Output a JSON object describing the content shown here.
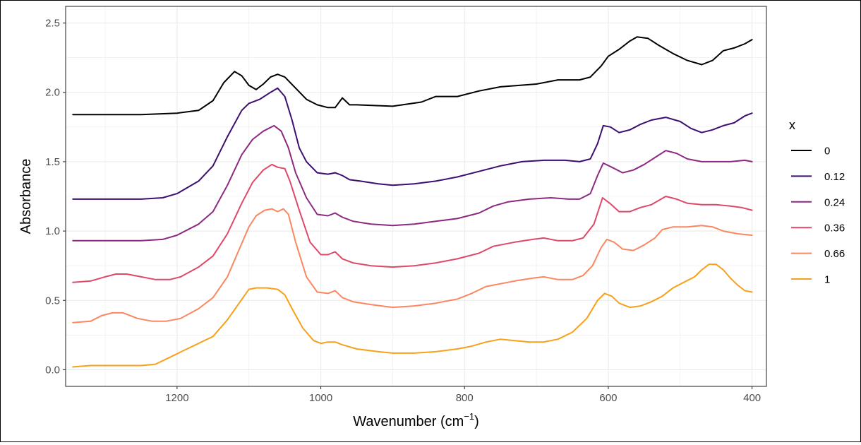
{
  "chart_data": {
    "type": "line",
    "xlabel_main": "Wavenumber (cm",
    "xlabel_sup": "−1",
    "xlabel_close": ")",
    "ylabel": "Absorbance",
    "xlim": [
      1355,
      380
    ],
    "ylim": [
      -0.12,
      2.62
    ],
    "x_reversed": true,
    "x_ticks": [
      1200,
      1000,
      800,
      600,
      400
    ],
    "y_ticks": [
      "0.0",
      "0.5",
      "1.0",
      "1.5",
      "2.0",
      "2.5"
    ],
    "grid": true,
    "legend_title": "x",
    "legend_position": "right",
    "series": [
      {
        "name": "0",
        "color": "#000004",
        "points": [
          [
            1345,
            1.84
          ],
          [
            1300,
            1.84
          ],
          [
            1250,
            1.84
          ],
          [
            1200,
            1.85
          ],
          [
            1170,
            1.87
          ],
          [
            1150,
            1.94
          ],
          [
            1135,
            2.07
          ],
          [
            1120,
            2.15
          ],
          [
            1110,
            2.12
          ],
          [
            1100,
            2.05
          ],
          [
            1090,
            2.02
          ],
          [
            1080,
            2.06
          ],
          [
            1070,
            2.11
          ],
          [
            1060,
            2.13
          ],
          [
            1050,
            2.11
          ],
          [
            1035,
            2.03
          ],
          [
            1020,
            1.95
          ],
          [
            1005,
            1.91
          ],
          [
            990,
            1.89
          ],
          [
            980,
            1.89
          ],
          [
            970,
            1.96
          ],
          [
            960,
            1.91
          ],
          [
            950,
            1.91
          ],
          [
            900,
            1.9
          ],
          [
            860,
            1.93
          ],
          [
            840,
            1.97
          ],
          [
            810,
            1.97
          ],
          [
            780,
            2.01
          ],
          [
            750,
            2.04
          ],
          [
            700,
            2.06
          ],
          [
            670,
            2.09
          ],
          [
            640,
            2.09
          ],
          [
            625,
            2.11
          ],
          [
            610,
            2.19
          ],
          [
            600,
            2.26
          ],
          [
            585,
            2.31
          ],
          [
            570,
            2.37
          ],
          [
            560,
            2.4
          ],
          [
            545,
            2.39
          ],
          [
            530,
            2.34
          ],
          [
            510,
            2.28
          ],
          [
            490,
            2.23
          ],
          [
            470,
            2.2
          ],
          [
            455,
            2.23
          ],
          [
            440,
            2.3
          ],
          [
            425,
            2.32
          ],
          [
            410,
            2.35
          ],
          [
            400,
            2.38
          ]
        ]
      },
      {
        "name": "0.12",
        "color": "#3b0f70",
        "points": [
          [
            1345,
            1.23
          ],
          [
            1300,
            1.23
          ],
          [
            1250,
            1.23
          ],
          [
            1220,
            1.24
          ],
          [
            1200,
            1.27
          ],
          [
            1170,
            1.36
          ],
          [
            1150,
            1.47
          ],
          [
            1130,
            1.68
          ],
          [
            1110,
            1.87
          ],
          [
            1100,
            1.92
          ],
          [
            1085,
            1.95
          ],
          [
            1070,
            2.0
          ],
          [
            1060,
            2.03
          ],
          [
            1050,
            1.97
          ],
          [
            1040,
            1.8
          ],
          [
            1030,
            1.6
          ],
          [
            1020,
            1.5
          ],
          [
            1005,
            1.42
          ],
          [
            990,
            1.41
          ],
          [
            980,
            1.42
          ],
          [
            970,
            1.4
          ],
          [
            960,
            1.37
          ],
          [
            945,
            1.36
          ],
          [
            920,
            1.34
          ],
          [
            900,
            1.33
          ],
          [
            870,
            1.34
          ],
          [
            840,
            1.36
          ],
          [
            810,
            1.39
          ],
          [
            780,
            1.43
          ],
          [
            750,
            1.47
          ],
          [
            720,
            1.5
          ],
          [
            690,
            1.51
          ],
          [
            660,
            1.51
          ],
          [
            640,
            1.5
          ],
          [
            625,
            1.52
          ],
          [
            615,
            1.63
          ],
          [
            607,
            1.76
          ],
          [
            597,
            1.75
          ],
          [
            585,
            1.71
          ],
          [
            570,
            1.73
          ],
          [
            555,
            1.77
          ],
          [
            540,
            1.8
          ],
          [
            520,
            1.82
          ],
          [
            500,
            1.79
          ],
          [
            485,
            1.74
          ],
          [
            470,
            1.71
          ],
          [
            455,
            1.73
          ],
          [
            440,
            1.76
          ],
          [
            425,
            1.78
          ],
          [
            410,
            1.83
          ],
          [
            400,
            1.85
          ]
        ]
      },
      {
        "name": "0.24",
        "color": "#8c2981",
        "points": [
          [
            1345,
            0.93
          ],
          [
            1300,
            0.93
          ],
          [
            1250,
            0.93
          ],
          [
            1220,
            0.94
          ],
          [
            1200,
            0.97
          ],
          [
            1170,
            1.05
          ],
          [
            1150,
            1.14
          ],
          [
            1130,
            1.33
          ],
          [
            1110,
            1.55
          ],
          [
            1095,
            1.66
          ],
          [
            1080,
            1.72
          ],
          [
            1065,
            1.76
          ],
          [
            1055,
            1.72
          ],
          [
            1045,
            1.6
          ],
          [
            1035,
            1.42
          ],
          [
            1020,
            1.24
          ],
          [
            1005,
            1.12
          ],
          [
            990,
            1.11
          ],
          [
            980,
            1.13
          ],
          [
            970,
            1.1
          ],
          [
            955,
            1.07
          ],
          [
            930,
            1.05
          ],
          [
            900,
            1.04
          ],
          [
            870,
            1.05
          ],
          [
            840,
            1.07
          ],
          [
            810,
            1.09
          ],
          [
            780,
            1.13
          ],
          [
            760,
            1.18
          ],
          [
            740,
            1.21
          ],
          [
            710,
            1.23
          ],
          [
            680,
            1.24
          ],
          [
            655,
            1.23
          ],
          [
            640,
            1.23
          ],
          [
            625,
            1.27
          ],
          [
            615,
            1.4
          ],
          [
            607,
            1.49
          ],
          [
            595,
            1.46
          ],
          [
            580,
            1.42
          ],
          [
            565,
            1.44
          ],
          [
            550,
            1.48
          ],
          [
            535,
            1.53
          ],
          [
            520,
            1.58
          ],
          [
            505,
            1.56
          ],
          [
            490,
            1.52
          ],
          [
            470,
            1.5
          ],
          [
            450,
            1.5
          ],
          [
            430,
            1.5
          ],
          [
            410,
            1.51
          ],
          [
            400,
            1.5
          ]
        ]
      },
      {
        "name": "0.36",
        "color": "#de4968",
        "points": [
          [
            1345,
            0.63
          ],
          [
            1320,
            0.64
          ],
          [
            1300,
            0.67
          ],
          [
            1285,
            0.69
          ],
          [
            1270,
            0.69
          ],
          [
            1250,
            0.67
          ],
          [
            1230,
            0.65
          ],
          [
            1210,
            0.65
          ],
          [
            1195,
            0.67
          ],
          [
            1170,
            0.74
          ],
          [
            1150,
            0.82
          ],
          [
            1130,
            0.98
          ],
          [
            1110,
            1.2
          ],
          [
            1095,
            1.35
          ],
          [
            1080,
            1.44
          ],
          [
            1068,
            1.48
          ],
          [
            1060,
            1.46
          ],
          [
            1050,
            1.45
          ],
          [
            1043,
            1.36
          ],
          [
            1030,
            1.15
          ],
          [
            1015,
            0.92
          ],
          [
            1000,
            0.83
          ],
          [
            990,
            0.83
          ],
          [
            980,
            0.85
          ],
          [
            970,
            0.8
          ],
          [
            955,
            0.77
          ],
          [
            930,
            0.75
          ],
          [
            900,
            0.74
          ],
          [
            870,
            0.75
          ],
          [
            840,
            0.77
          ],
          [
            810,
            0.8
          ],
          [
            780,
            0.84
          ],
          [
            760,
            0.89
          ],
          [
            730,
            0.92
          ],
          [
            705,
            0.94
          ],
          [
            690,
            0.95
          ],
          [
            670,
            0.93
          ],
          [
            650,
            0.93
          ],
          [
            635,
            0.95
          ],
          [
            620,
            1.05
          ],
          [
            608,
            1.24
          ],
          [
            598,
            1.2
          ],
          [
            585,
            1.14
          ],
          [
            570,
            1.14
          ],
          [
            555,
            1.17
          ],
          [
            540,
            1.19
          ],
          [
            520,
            1.25
          ],
          [
            505,
            1.23
          ],
          [
            490,
            1.2
          ],
          [
            470,
            1.19
          ],
          [
            450,
            1.19
          ],
          [
            430,
            1.18
          ],
          [
            415,
            1.17
          ],
          [
            400,
            1.15
          ]
        ]
      },
      {
        "name": "0.66",
        "color": "#fb8761",
        "points": [
          [
            1345,
            0.34
          ],
          [
            1320,
            0.35
          ],
          [
            1305,
            0.39
          ],
          [
            1290,
            0.41
          ],
          [
            1275,
            0.41
          ],
          [
            1255,
            0.37
          ],
          [
            1235,
            0.35
          ],
          [
            1215,
            0.35
          ],
          [
            1195,
            0.37
          ],
          [
            1170,
            0.44
          ],
          [
            1150,
            0.52
          ],
          [
            1130,
            0.67
          ],
          [
            1115,
            0.85
          ],
          [
            1100,
            1.03
          ],
          [
            1090,
            1.11
          ],
          [
            1078,
            1.15
          ],
          [
            1068,
            1.16
          ],
          [
            1060,
            1.14
          ],
          [
            1052,
            1.16
          ],
          [
            1045,
            1.12
          ],
          [
            1035,
            0.92
          ],
          [
            1020,
            0.67
          ],
          [
            1005,
            0.56
          ],
          [
            990,
            0.55
          ],
          [
            980,
            0.57
          ],
          [
            970,
            0.52
          ],
          [
            955,
            0.49
          ],
          [
            930,
            0.47
          ],
          [
            900,
            0.45
          ],
          [
            870,
            0.46
          ],
          [
            840,
            0.48
          ],
          [
            810,
            0.51
          ],
          [
            790,
            0.55
          ],
          [
            770,
            0.6
          ],
          [
            750,
            0.62
          ],
          [
            730,
            0.64
          ],
          [
            705,
            0.66
          ],
          [
            690,
            0.67
          ],
          [
            670,
            0.65
          ],
          [
            650,
            0.65
          ],
          [
            635,
            0.68
          ],
          [
            622,
            0.75
          ],
          [
            610,
            0.88
          ],
          [
            602,
            0.94
          ],
          [
            592,
            0.92
          ],
          [
            580,
            0.87
          ],
          [
            565,
            0.86
          ],
          [
            550,
            0.9
          ],
          [
            535,
            0.95
          ],
          [
            525,
            1.01
          ],
          [
            510,
            1.03
          ],
          [
            490,
            1.03
          ],
          [
            470,
            1.04
          ],
          [
            455,
            1.03
          ],
          [
            440,
            1.0
          ],
          [
            420,
            0.98
          ],
          [
            400,
            0.97
          ]
        ]
      },
      {
        "name": "1",
        "color": "#f8a01a",
        "points": [
          [
            1345,
            0.02
          ],
          [
            1320,
            0.03
          ],
          [
            1300,
            0.03
          ],
          [
            1270,
            0.03
          ],
          [
            1250,
            0.03
          ],
          [
            1230,
            0.04
          ],
          [
            1210,
            0.09
          ],
          [
            1190,
            0.14
          ],
          [
            1170,
            0.19
          ],
          [
            1150,
            0.24
          ],
          [
            1130,
            0.36
          ],
          [
            1115,
            0.47
          ],
          [
            1100,
            0.58
          ],
          [
            1090,
            0.59
          ],
          [
            1075,
            0.59
          ],
          [
            1060,
            0.58
          ],
          [
            1050,
            0.54
          ],
          [
            1040,
            0.44
          ],
          [
            1025,
            0.3
          ],
          [
            1010,
            0.21
          ],
          [
            1000,
            0.19
          ],
          [
            990,
            0.2
          ],
          [
            980,
            0.2
          ],
          [
            970,
            0.18
          ],
          [
            950,
            0.15
          ],
          [
            920,
            0.13
          ],
          [
            900,
            0.12
          ],
          [
            870,
            0.12
          ],
          [
            840,
            0.13
          ],
          [
            810,
            0.15
          ],
          [
            790,
            0.17
          ],
          [
            770,
            0.2
          ],
          [
            750,
            0.22
          ],
          [
            730,
            0.21
          ],
          [
            710,
            0.2
          ],
          [
            690,
            0.2
          ],
          [
            670,
            0.22
          ],
          [
            650,
            0.27
          ],
          [
            630,
            0.37
          ],
          [
            615,
            0.5
          ],
          [
            605,
            0.55
          ],
          [
            595,
            0.53
          ],
          [
            585,
            0.48
          ],
          [
            570,
            0.45
          ],
          [
            555,
            0.46
          ],
          [
            540,
            0.49
          ],
          [
            525,
            0.53
          ],
          [
            510,
            0.59
          ],
          [
            495,
            0.63
          ],
          [
            480,
            0.67
          ],
          [
            470,
            0.72
          ],
          [
            460,
            0.76
          ],
          [
            450,
            0.76
          ],
          [
            440,
            0.72
          ],
          [
            430,
            0.66
          ],
          [
            420,
            0.61
          ],
          [
            410,
            0.57
          ],
          [
            400,
            0.56
          ]
        ]
      }
    ]
  }
}
